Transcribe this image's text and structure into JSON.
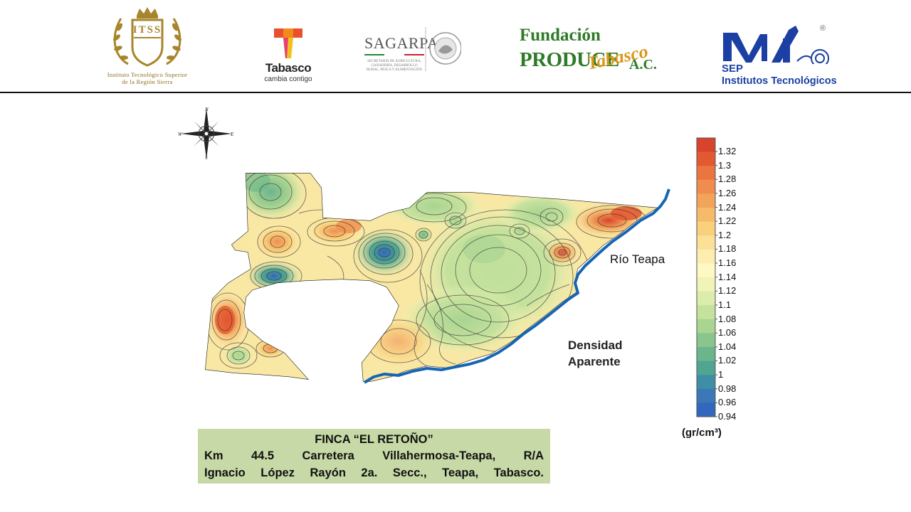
{
  "header": {
    "logos": [
      {
        "name": "itss",
        "lines": [
          "Instituto Tecnológico Superior",
          "de la Región Sierra"
        ],
        "monogram": "ITSS",
        "color": "#8a6d1e"
      },
      {
        "name": "tabasco",
        "word": "Tabasco",
        "sub": "cambia contigo"
      },
      {
        "name": "sagarpa",
        "word": "SAGARPA",
        "sub": "SECRETARÍA DE AGRICULTURA, GANADERÍA, DESARROLLO RURAL, PESCA Y ALIMENTACIÓN"
      },
      {
        "name": "fundacion-produce",
        "line1": "Fundación",
        "line2": "PRODUCE",
        "script": "Tabasco",
        "suffix": "A.C."
      },
      {
        "name": "sep",
        "word": "SEP",
        "sub": "Institutos Tecnológicos",
        "reg": "®"
      }
    ]
  },
  "map": {
    "compass": {
      "n": "N",
      "s": "S",
      "e": "E",
      "w": "W"
    },
    "river_label": "Río Teapa",
    "variable_label": [
      "Densidad",
      "Aparente"
    ],
    "river_color": "#1565b5"
  },
  "colorbar": {
    "ticks": [
      "1.32",
      "1.3",
      "1.28",
      "1.26",
      "1.24",
      "1.22",
      "1.2",
      "1.18",
      "1.16",
      "1.14",
      "1.12",
      "1.1",
      "1.08",
      "1.06",
      "1.04",
      "1.02",
      "1",
      "0.98",
      "0.96",
      "0.94"
    ],
    "colors": [
      "#d7432c",
      "#e35a32",
      "#ea7540",
      "#f08d4e",
      "#f3a45b",
      "#f6bb6a",
      "#f9d07c",
      "#fbe096",
      "#fdeeaf",
      "#fdf8c4",
      "#f0f4b6",
      "#dcecab",
      "#c5e29d",
      "#a9d491",
      "#89c58d",
      "#6bb58c",
      "#4fa58f",
      "#3f8fa4",
      "#3a78b8",
      "#3367bd"
    ],
    "unit": "(gr/cm³)"
  },
  "info": {
    "title": "FINCA “EL RETOÑO”",
    "line1": "Km  44.5  Carretera  Villahermosa-Teapa,  R/A",
    "line2": "Ignacio López Rayón  2a. Secc.,  Teapa, Tabasco."
  }
}
